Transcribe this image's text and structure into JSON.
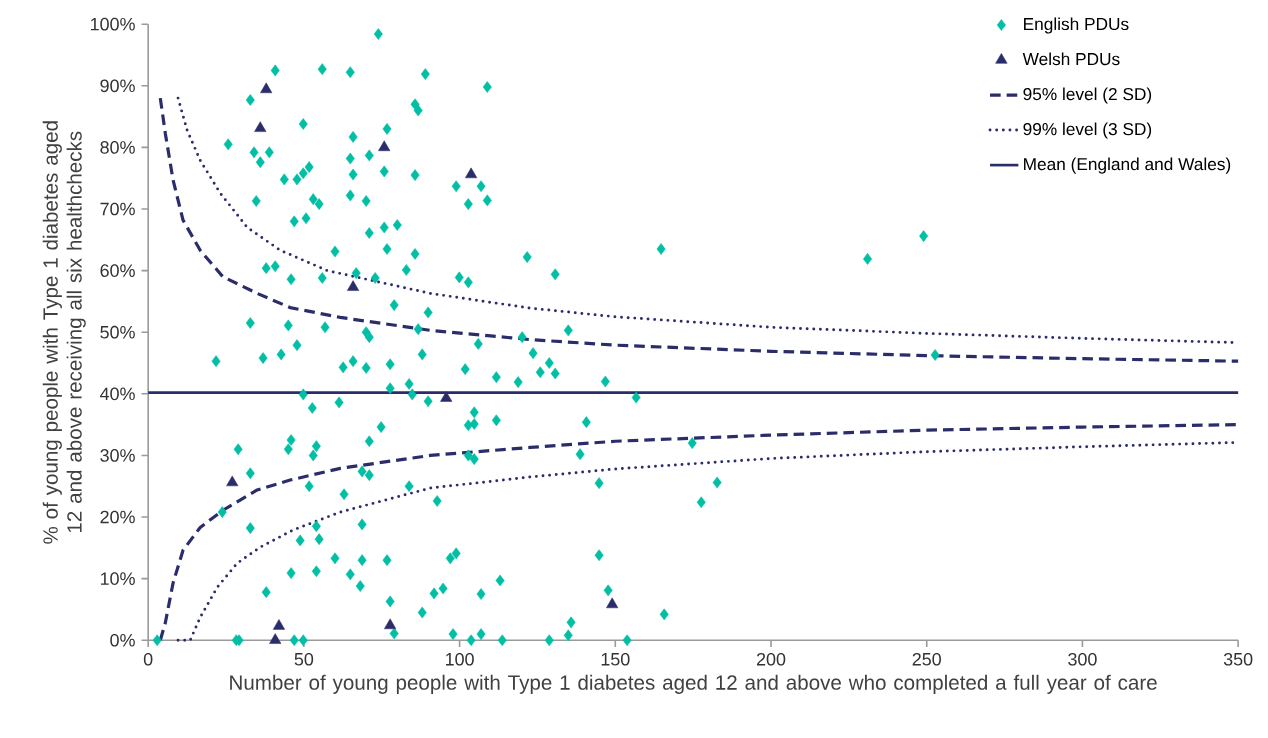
{
  "chart_data": {
    "type": "scatter",
    "xlabel": "Number of young people with Type 1 diabetes aged 12 and above who completed a full year of care",
    "ylabel": "% of young people with Type 1 diabetes aged 12 and above receiving all six healthchecks",
    "xlim": [
      0,
      350
    ],
    "xticks": [
      0,
      50,
      100,
      150,
      200,
      250,
      300,
      350
    ],
    "ylim": [
      0,
      100
    ],
    "yticks": [
      {
        "value": 0,
        "label": "0%"
      },
      {
        "value": 10,
        "label": "10%"
      },
      {
        "value": 20,
        "label": "20%"
      },
      {
        "value": 30,
        "label": "30%"
      },
      {
        "value": 40,
        "label": "40%"
      },
      {
        "value": 50,
        "label": "50%"
      },
      {
        "value": 60,
        "label": "60%"
      },
      {
        "value": 70,
        "label": "70%"
      },
      {
        "value": 80,
        "label": "80%"
      },
      {
        "value": 90,
        "label": "90%"
      },
      {
        "value": 100,
        "label": "100%"
      }
    ],
    "legend": "top right",
    "series": [
      {
        "name": "English PDUs",
        "marker": "diamond",
        "color": "#00bfa5",
        "x": [
          40.8,
          55.9,
          32.8,
          49.8,
          25.7,
          34,
          38.9,
          36,
          51.7,
          49.8,
          43.7,
          47.8,
          34.7,
          53,
          54.9,
          46.9,
          50.7,
          60,
          37.9,
          40.8,
          45.9,
          55.9,
          32.8,
          45,
          56.8,
          47.8,
          21.8,
          36.9,
          42.7,
          49.8,
          52.7,
          61.3,
          45.9,
          45,
          28.9,
          54,
          53,
          32.8,
          51.7,
          23.8,
          32.8,
          54,
          48.8,
          54.9,
          60,
          45.9,
          54,
          37.9,
          2.9,
          28.3,
          29.2,
          46.9,
          49.8,
          73.9,
          64.9,
          89,
          108.9,
          85.7,
          86.7,
          76.7,
          65.8,
          64.9,
          71,
          65.8,
          75.8,
          85.7,
          98.9,
          106.9,
          102.8,
          108.9,
          64.9,
          70,
          71,
          75.8,
          80,
          76.7,
          85.7,
          82.9,
          66.8,
          72.9,
          99.9,
          102.8,
          79,
          89.9,
          70,
          71,
          86.7,
          106,
          62.6,
          65.8,
          70,
          77.7,
          88,
          101.8,
          111.8,
          118.8,
          77.7,
          83.8,
          84.8,
          89.9,
          104.7,
          102.8,
          104.7,
          111.8,
          74.8,
          71,
          102.8,
          104.7,
          68.7,
          71,
          62.9,
          83.8,
          92.8,
          68.7,
          68.7,
          76.7,
          97,
          98.9,
          64.9,
          68.1,
          91.8,
          94.7,
          113,
          106.9,
          77.7,
          88,
          79,
          97.9,
          106.9,
          103.7,
          113.7,
          121.7,
          130.7,
          134.9,
          120.1,
          123.6,
          128.8,
          125.9,
          130.7,
          146.8,
          156.7,
          164.7,
          140.7,
          138.7,
          174.7,
          144.8,
          182.7,
          177.6,
          144.8,
          147.7,
          165.7,
          135.8,
          134.9,
          128.8,
          153.8,
          231,
          249,
          252.7
        ],
        "values": [
          92.5,
          92.7,
          87.7,
          83.8,
          80.5,
          79.2,
          79.2,
          77.6,
          76.8,
          75.8,
          74.8,
          74.8,
          71.3,
          71.6,
          70.8,
          68,
          68.5,
          63.1,
          60.4,
          60.7,
          58.6,
          58.8,
          51.5,
          51.1,
          50.8,
          47.9,
          45.3,
          45.8,
          46.4,
          39.9,
          37.7,
          38.6,
          32.5,
          31,
          31,
          31.5,
          30,
          27.1,
          25,
          20.8,
          18.2,
          18.5,
          16.2,
          16.4,
          13.3,
          10.9,
          11.2,
          7.8,
          0,
          0,
          0,
          0,
          0,
          98.4,
          92.2,
          91.9,
          89.8,
          87,
          86,
          83,
          81.7,
          78.2,
          78.7,
          75.6,
          76.1,
          75.5,
          73.7,
          73.7,
          70.8,
          71.4,
          72.2,
          71.3,
          66.1,
          67,
          67.4,
          63.5,
          62.7,
          60.1,
          59.6,
          58.8,
          58.9,
          58.1,
          54.4,
          53.2,
          50,
          49.2,
          50.5,
          48.1,
          44.3,
          45.3,
          44.2,
          44.8,
          46.4,
          44,
          42.7,
          41.9,
          40.9,
          41.6,
          39.9,
          38.8,
          37,
          34.9,
          35.1,
          35.7,
          34.6,
          32.3,
          30,
          29.4,
          27.4,
          26.8,
          23.7,
          25,
          22.6,
          18.8,
          13,
          13,
          13.3,
          14.1,
          10.7,
          8.8,
          7.6,
          8.4,
          9.7,
          7.5,
          6.3,
          4.5,
          1.1,
          1,
          1,
          0,
          0,
          62.2,
          59.4,
          50.3,
          49.2,
          46.6,
          45,
          43.5,
          43.3,
          42,
          39.4,
          63.5,
          35.4,
          30.2,
          32,
          25.5,
          25.6,
          22.4,
          13.8,
          8.1,
          4.2,
          2.9,
          0.8,
          0,
          0,
          61.9,
          65.6,
          46.3
        ]
      },
      {
        "name": "Welsh PDUs",
        "marker": "triangle",
        "color": "#2b2d6b",
        "x": [
          37.9,
          36,
          75.8,
          103.7,
          65.8,
          95.7,
          27,
          42,
          40.8,
          77.7,
          149
        ],
        "values": [
          89.4,
          83.1,
          80,
          75.6,
          57.3,
          39.3,
          25.6,
          2.3,
          0,
          2.4,
          5.8
        ]
      },
      {
        "name": "95% level (2 SD)",
        "type": "line",
        "marker": "none",
        "line_style": "dashed",
        "color": "#2b2d6b",
        "x": [
          3.9,
          5.5,
          8,
          11.2,
          16.7,
          24,
          35,
          45.6,
          61.7,
          90.6,
          122.7,
          150,
          200,
          250,
          300,
          350
        ],
        "values": [
          88,
          82.3,
          74.7,
          68.2,
          63.3,
          59,
          56.3,
          54,
          52.4,
          50.3,
          48.8,
          47.9,
          46.9,
          46.2,
          45.7,
          45.3
        ]
      },
      {
        "name": "99% level (3 SD)",
        "type": "line",
        "marker": "none",
        "line_style": "dotted",
        "color": "#2b2d6b",
        "x": [
          9.6,
          12.5,
          16.7,
          23.1,
          31.8,
          42.4,
          57.5,
          90.6,
          122.7,
          150,
          200,
          250,
          300,
          350
        ],
        "values": [
          88,
          82.8,
          77.9,
          72.6,
          67,
          63.3,
          60,
          56.3,
          53.9,
          52.5,
          50.8,
          49.8,
          49,
          48.3
        ]
      },
      {
        "type": "line",
        "marker": "none",
        "line_style": "dashed",
        "color": "#2b2d6b",
        "x": [
          3.9,
          5.5,
          8,
          11.2,
          16.7,
          24,
          35,
          45.6,
          61.7,
          90.6,
          122.7,
          150,
          200,
          250,
          300,
          350
        ],
        "values": [
          0,
          2.8,
          9.3,
          14.6,
          18.3,
          21.1,
          24.4,
          26,
          27.9,
          30,
          31.3,
          32.3,
          33.3,
          34.1,
          34.6,
          35
        ]
      },
      {
        "type": "line",
        "marker": "none",
        "line_style": "dotted",
        "color": "#2b2d6b",
        "x": [
          9.6,
          13.5,
          16.7,
          22.2,
          28.6,
          36,
          46.6,
          61.7,
          90.6,
          122.7,
          150,
          200,
          250,
          300,
          350
        ],
        "values": [
          0,
          0,
          3.7,
          8.6,
          12.5,
          15.1,
          17.9,
          20.8,
          24.7,
          26.5,
          27.8,
          29.5,
          30.6,
          31.4,
          32.1
        ]
      }
    ],
    "ref_lines": [
      {
        "axis": "y",
        "value": 40.2,
        "label": "Mean (England and Wales)",
        "color": "#2b2d6b",
        "line_style": "solid"
      }
    ]
  }
}
